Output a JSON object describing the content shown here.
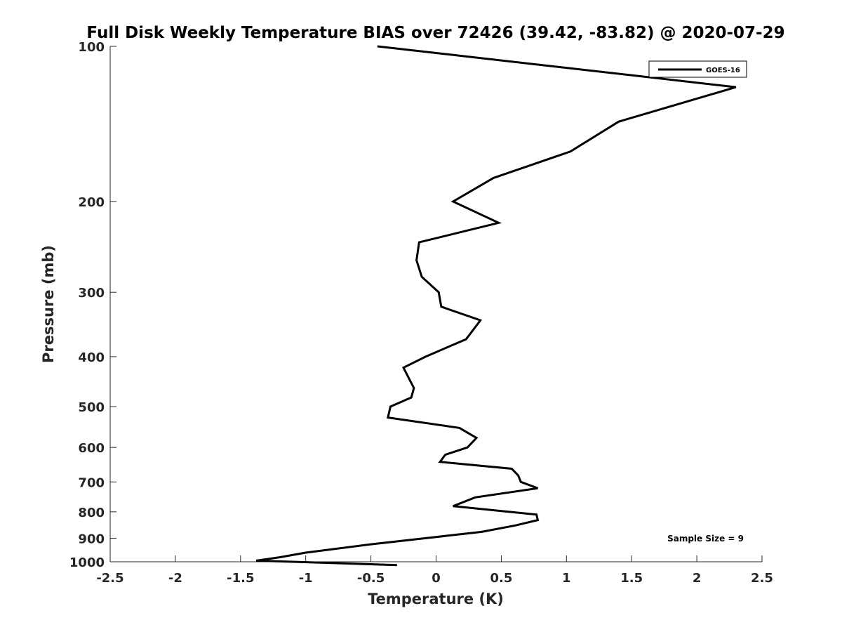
{
  "chart_data": {
    "type": "line",
    "title": "Full Disk Weekly Temperature BIAS over 72426 (39.42, -83.82) @ 2020-07-29",
    "xlabel": "Temperature (K)",
    "ylabel": "Pressure (mb)",
    "xlim": [
      -2.5,
      2.5
    ],
    "ylim": [
      100,
      1000
    ],
    "yscale": "log",
    "yreversed": true,
    "xticks": [
      -2.5,
      -2,
      -1.5,
      -1,
      -0.5,
      0,
      0.5,
      1,
      1.5,
      2,
      2.5
    ],
    "xtick_labels": [
      "-2.5",
      "-2",
      "-1.5",
      "-1",
      "-0.5",
      "0",
      "0.5",
      "1",
      "1.5",
      "2",
      "2.5"
    ],
    "yticks": [
      100,
      200,
      300,
      400,
      500,
      600,
      700,
      800,
      900,
      1000
    ],
    "ytick_labels": [
      "100",
      "200",
      "300",
      "400",
      "500",
      "600",
      "700",
      "800",
      "900",
      "1000"
    ],
    "grid": false,
    "legend_position": "top-right",
    "annotation": "Sample Size = 9",
    "series": [
      {
        "name": "GOES-16",
        "color": "#000000",
        "points": [
          [
            -0.45,
            100
          ],
          [
            2.3,
            120
          ],
          [
            1.4,
            140
          ],
          [
            1.03,
            160
          ],
          [
            0.44,
            180
          ],
          [
            0.13,
            200
          ],
          [
            0.48,
            220
          ],
          [
            -0.13,
            240
          ],
          [
            -0.15,
            260
          ],
          [
            -0.11,
            280
          ],
          [
            0.02,
            300
          ],
          [
            0.04,
            320
          ],
          [
            0.34,
            340
          ],
          [
            0.23,
            370
          ],
          [
            -0.08,
            400
          ],
          [
            -0.25,
            420
          ],
          [
            -0.21,
            440
          ],
          [
            -0.17,
            460
          ],
          [
            -0.19,
            480
          ],
          [
            -0.35,
            500
          ],
          [
            -0.37,
            525
          ],
          [
            0.18,
            550
          ],
          [
            0.31,
            575
          ],
          [
            0.24,
            600
          ],
          [
            0.07,
            620
          ],
          [
            0.03,
            640
          ],
          [
            0.58,
            660
          ],
          [
            0.63,
            680
          ],
          [
            0.65,
            700
          ],
          [
            0.78,
            720
          ],
          [
            0.3,
            750
          ],
          [
            0.13,
            780
          ],
          [
            0.77,
            810
          ],
          [
            0.78,
            830
          ],
          [
            0.61,
            850
          ],
          [
            0.35,
            875
          ],
          [
            -0.5,
            925
          ],
          [
            -1.0,
            960
          ],
          [
            -1.2,
            980
          ],
          [
            -1.38,
            995
          ],
          [
            -0.3,
            1015
          ]
        ]
      }
    ]
  }
}
